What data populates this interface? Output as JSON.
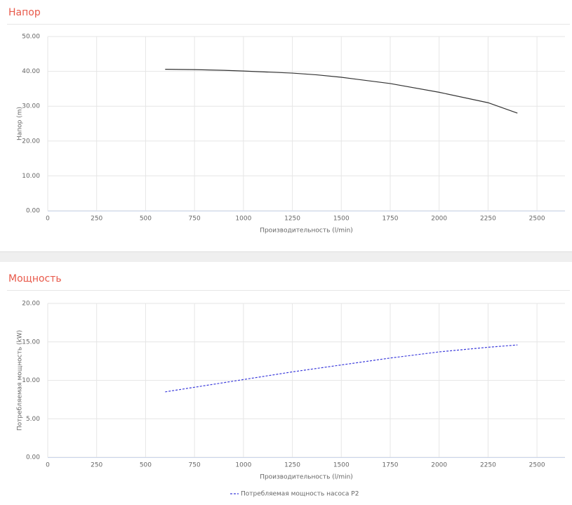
{
  "chart_data": [
    {
      "type": "line",
      "title": "Напор",
      "x_label": "Производительность (l/min)",
      "y_label": "Напор (m)",
      "x": [
        600,
        750,
        900,
        1000,
        1250,
        1375,
        1500,
        1750,
        2000,
        2250,
        2400
      ],
      "series": [
        {
          "color": "#333333",
          "values": [
            40.6,
            40.5,
            40.3,
            40.1,
            39.5,
            39.0,
            38.3,
            36.5,
            34.0,
            31.0,
            28.0
          ]
        }
      ],
      "xlim": [
        0,
        2643
      ],
      "ylim": [
        0,
        50
      ],
      "xticks": [
        0,
        250,
        500,
        750,
        1000,
        1250,
        1500,
        1750,
        2000,
        2250,
        2500
      ],
      "yticks": [
        {
          "value": 0,
          "label": "0.00"
        },
        {
          "value": 10,
          "label": "10.00"
        },
        {
          "value": 20,
          "label": "20.00"
        },
        {
          "value": 30,
          "label": "30.00"
        },
        {
          "value": 40,
          "label": "40.00"
        },
        {
          "value": 50,
          "label": "50.00"
        }
      ],
      "grid": true
    },
    {
      "type": "line",
      "title": "Мощность",
      "x_label": "Производительность (l/min)",
      "y_label": "Потребляемая мощность (kW)",
      "x": [
        600,
        750,
        1000,
        1250,
        1500,
        1750,
        2000,
        2250,
        2400
      ],
      "series": [
        {
          "name": "Потребляемая мощность насоса P2",
          "color": "#3b3bdb",
          "line_style": "dashed",
          "values": [
            8.5,
            9.1,
            10.1,
            11.1,
            12.0,
            12.9,
            13.7,
            14.3,
            14.6
          ]
        }
      ],
      "xlim": [
        0,
        2643
      ],
      "ylim": [
        0,
        20
      ],
      "xticks": [
        0,
        250,
        500,
        750,
        1000,
        1250,
        1500,
        1750,
        2000,
        2250,
        2500
      ],
      "yticks": [
        {
          "value": 0,
          "label": "0.00"
        },
        {
          "value": 5,
          "label": "5.00"
        },
        {
          "value": 10,
          "label": "10.00"
        },
        {
          "value": 15,
          "label": "15.00"
        },
        {
          "value": 20,
          "label": "20.00"
        }
      ],
      "grid": true,
      "legend": "bottom"
    }
  ]
}
